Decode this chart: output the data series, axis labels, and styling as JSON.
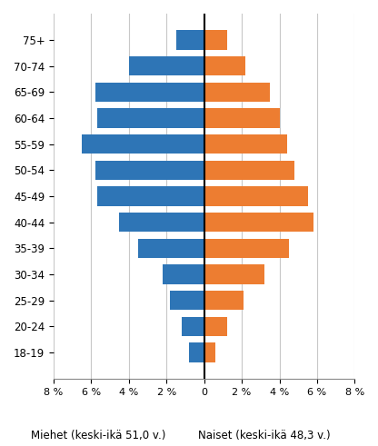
{
  "age_groups": [
    "75+",
    "70-74",
    "65-69",
    "60-64",
    "55-59",
    "50-54",
    "45-49",
    "40-44",
    "35-39",
    "30-34",
    "25-29",
    "20-24",
    "18-19"
  ],
  "men_values": [
    -1.5,
    -4.0,
    -5.8,
    -5.7,
    -6.5,
    -5.8,
    -5.7,
    -4.5,
    -3.5,
    -2.2,
    -1.8,
    -1.2,
    -0.8
  ],
  "women_values": [
    1.2,
    2.2,
    3.5,
    4.0,
    4.4,
    4.8,
    5.5,
    5.8,
    4.5,
    3.2,
    2.1,
    1.2,
    0.6
  ],
  "men_color": "#2E75B6",
  "women_color": "#ED7D31",
  "xlabel_left": "Miehet (keski-ikä 51,0 v.)",
  "xlabel_right": "Naiset (keski-ikä 48,3 v.)",
  "xlim": [
    -8,
    8
  ],
  "xticks": [
    -8,
    -6,
    -4,
    -2,
    0,
    2,
    4,
    6,
    8
  ],
  "xtick_labels": [
    "8 %",
    "6 %",
    "4 %",
    "2 %",
    "0",
    "2 %",
    "4 %",
    "6 %",
    "8 %"
  ],
  "background_color": "#FFFFFF",
  "grid_color": "#C8C8C8",
  "bar_height": 0.75
}
